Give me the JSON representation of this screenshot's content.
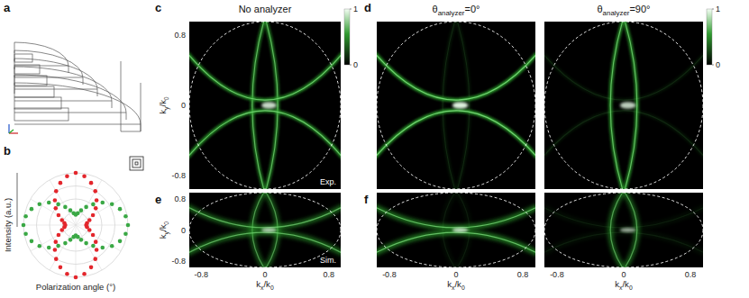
{
  "panel_letters": [
    "a",
    "b",
    "c",
    "d",
    "e",
    "f"
  ],
  "chart_data": [
    {
      "type": "polar_scatter",
      "xlabel": "Polarization angle (°)",
      "ylabel": "Intensity (a.u.)",
      "x": [
        0,
        10,
        20,
        30,
        40,
        50,
        60,
        70,
        80,
        90,
        100,
        110,
        120,
        130,
        140,
        150,
        160,
        170,
        180,
        190,
        200,
        210,
        220,
        230,
        240,
        250,
        260,
        270,
        280,
        290,
        300,
        310,
        320,
        330,
        340,
        350
      ],
      "rlim": [
        0,
        1
      ],
      "rticks": [
        0.25,
        0.5,
        0.75,
        1
      ],
      "grid": true,
      "tick_labels": false,
      "series": [
        {
          "color": "#e3262c",
          "marker": "circle",
          "values": [
            0.2,
            0.22,
            0.28,
            0.38,
            0.5,
            0.62,
            0.75,
            0.86,
            0.95,
            1.0,
            0.95,
            0.86,
            0.75,
            0.62,
            0.5,
            0.38,
            0.28,
            0.22,
            0.2,
            0.22,
            0.28,
            0.38,
            0.5,
            0.62,
            0.75,
            0.86,
            0.95,
            1.0,
            0.95,
            0.86,
            0.75,
            0.62,
            0.5,
            0.38,
            0.28,
            0.22
          ]
        },
        {
          "color": "#3aa845",
          "marker": "circle",
          "values": [
            1.0,
            0.97,
            0.9,
            0.8,
            0.67,
            0.52,
            0.4,
            0.3,
            0.23,
            0.2,
            0.23,
            0.3,
            0.4,
            0.52,
            0.67,
            0.8,
            0.9,
            0.97,
            1.0,
            0.97,
            0.9,
            0.8,
            0.67,
            0.52,
            0.4,
            0.3,
            0.23,
            0.2,
            0.23,
            0.3,
            0.4,
            0.52,
            0.67,
            0.8,
            0.9,
            0.97
          ]
        }
      ]
    },
    {
      "type": "image",
      "title": [
        {
          "text": "No analyzer"
        }
      ],
      "annotation": "Exp.",
      "analyzer_angle": null,
      "ylabel": [
        {
          "text": "k"
        },
        {
          "text": "y",
          "sub": true
        },
        {
          "text": "/k"
        },
        {
          "text": "0",
          "sub": true
        }
      ],
      "xlim": [
        -0.95,
        0.95
      ],
      "ylim": [
        -0.95,
        0.95
      ],
      "xticks": [
        -0.8,
        0,
        0.8
      ],
      "yticks": [
        -0.8,
        0,
        0.8
      ],
      "tick_labels": "y",
      "circle_radius": 0.95,
      "colorbar": {
        "lim": [
          0,
          1
        ],
        "ticks": [
          0,
          1
        ]
      }
    },
    {
      "type": "image",
      "title": [
        {
          "text": "θ"
        },
        {
          "text": "analyzer",
          "sub": true
        },
        {
          "text": "=0°"
        }
      ],
      "analyzer_angle": 0,
      "xlim": [
        -0.95,
        0.95
      ],
      "ylim": [
        -0.95,
        0.95
      ],
      "xticks": [
        -0.8,
        0,
        0.8
      ],
      "yticks": [
        -0.8,
        0,
        0.8
      ],
      "tick_labels": false,
      "circle_radius": 0.95
    },
    {
      "type": "image",
      "title": [
        {
          "text": "θ"
        },
        {
          "text": "analyzer",
          "sub": true
        },
        {
          "text": "=90°"
        }
      ],
      "analyzer_angle": 90,
      "xlim": [
        -0.95,
        0.95
      ],
      "ylim": [
        -0.95,
        0.95
      ],
      "xticks": [
        -0.8,
        0,
        0.8
      ],
      "yticks": [
        -0.8,
        0,
        0.8
      ],
      "tick_labels": false,
      "circle_radius": 0.95,
      "colorbar": {
        "lim": [
          0,
          1
        ],
        "ticks": [
          0,
          1
        ]
      }
    },
    {
      "type": "image",
      "annotation": "Sim.",
      "analyzer_angle": null,
      "xlabel": [
        {
          "text": "k"
        },
        {
          "text": "x",
          "sub": true
        },
        {
          "text": "/k"
        },
        {
          "text": "0",
          "sub": true
        }
      ],
      "ylabel": [
        {
          "text": "k"
        },
        {
          "text": "y",
          "sub": true
        },
        {
          "text": "/k"
        },
        {
          "text": "0",
          "sub": true
        }
      ],
      "xlim": [
        -0.95,
        0.95
      ],
      "ylim": [
        -0.95,
        0.95
      ],
      "xticks": [
        -0.8,
        0,
        0.8
      ],
      "yticks": [
        -0.8,
        0,
        0.8
      ],
      "tick_labels": true,
      "circle_radius": 0.95
    },
    {
      "type": "image",
      "analyzer_angle": 0,
      "xlabel": [
        {
          "text": "k"
        },
        {
          "text": "x",
          "sub": true
        },
        {
          "text": "/k"
        },
        {
          "text": "0",
          "sub": true
        }
      ],
      "xlim": [
        -0.95,
        0.95
      ],
      "ylim": [
        -0.95,
        0.95
      ],
      "xticks": [
        -0.8,
        0,
        0.8
      ],
      "yticks": [
        -0.8,
        0,
        0.8
      ],
      "tick_labels": "x",
      "circle_radius": 0.95
    },
    {
      "type": "image",
      "analyzer_angle": 90,
      "xlabel": [
        {
          "text": "k"
        },
        {
          "text": "x",
          "sub": true
        },
        {
          "text": "/k"
        },
        {
          "text": "0",
          "sub": true
        }
      ],
      "xlim": [
        -0.95,
        0.95
      ],
      "ylim": [
        -0.95,
        0.95
      ],
      "xticks": [
        -0.8,
        0,
        0.8
      ],
      "yticks": [
        -0.8,
        0,
        0.8
      ],
      "tick_labels": "x",
      "circle_radius": 0.95
    }
  ]
}
